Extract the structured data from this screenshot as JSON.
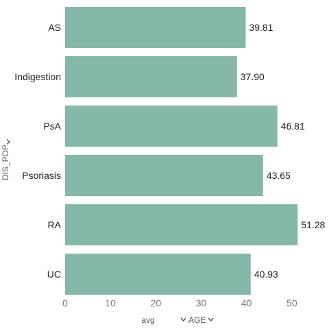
{
  "chart_data": {
    "type": "bar",
    "orientation": "horizontal",
    "categories": [
      "AS",
      "Indigestion",
      "PsA",
      "Psoriasis",
      "RA",
      "UC"
    ],
    "values": [
      39.81,
      37.9,
      46.81,
      43.65,
      51.28,
      40.93
    ],
    "value_labels": [
      "39.81",
      "37.90",
      "46.81",
      "43.65",
      "51.28",
      "40.93"
    ],
    "xticks": [
      0,
      10,
      20,
      30,
      40,
      50
    ],
    "xlim": [
      0,
      53.5
    ],
    "x_aggregate_label": "avg",
    "xlabel": "AGE",
    "ylabel": "DIS_POP",
    "bar_color": "#86b8a9",
    "grid": false
  }
}
